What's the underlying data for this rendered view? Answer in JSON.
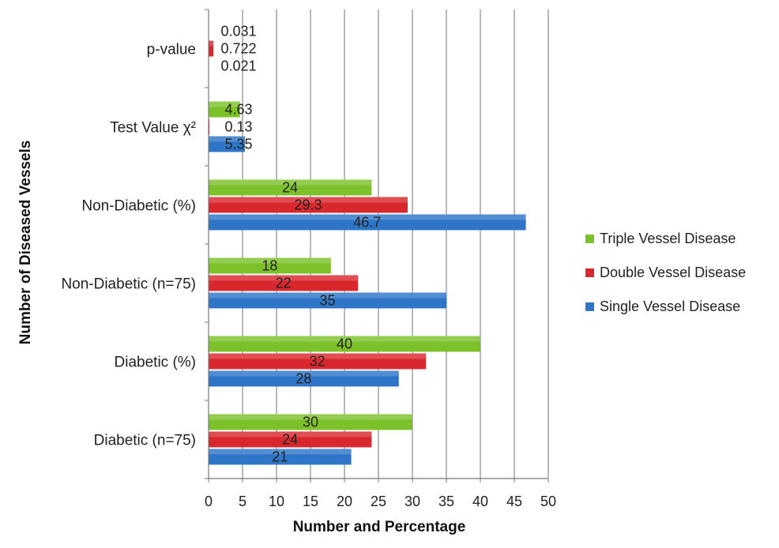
{
  "chart_data": {
    "type": "bar",
    "orientation": "horizontal",
    "xlabel": "Number and Percentage",
    "ylabel": "Number of Diseased Vessels",
    "xlim": [
      0,
      50
    ],
    "xticks": [
      0,
      5,
      10,
      15,
      20,
      25,
      30,
      35,
      40,
      45,
      50
    ],
    "grid": "vertical",
    "legend_position": "right",
    "categories": [
      "Diabetic (n=75)",
      "Diabetic (%)",
      "Non-Diabetic (n=75)",
      "Non-Diabetic (%)",
      "Test Value χ²",
      "p-value"
    ],
    "series": [
      {
        "name": "Single Vessel Disease",
        "color": "#2e75c8",
        "values": [
          21,
          28,
          35,
          46.7,
          5.35,
          0.021
        ],
        "labels": [
          "21",
          "28",
          "35",
          "46.7",
          "5.35",
          "0.021"
        ]
      },
      {
        "name": "Double Vessel Disease",
        "color": "#d9272e",
        "values": [
          24,
          32,
          22,
          29.3,
          0.13,
          0.722
        ],
        "labels": [
          "24",
          "32",
          "22",
          "29.3",
          "0.13",
          "0.722"
        ]
      },
      {
        "name": "Triple Vessel Disease",
        "color": "#7cc12a",
        "values": [
          30,
          40,
          18,
          24,
          4.63,
          0.031
        ],
        "labels": [
          "30",
          "40",
          "18",
          "24",
          "4.63",
          "0.031"
        ]
      }
    ],
    "legend_order": [
      "Triple Vessel Disease",
      "Double Vessel Disease",
      "Single Vessel Disease"
    ]
  }
}
